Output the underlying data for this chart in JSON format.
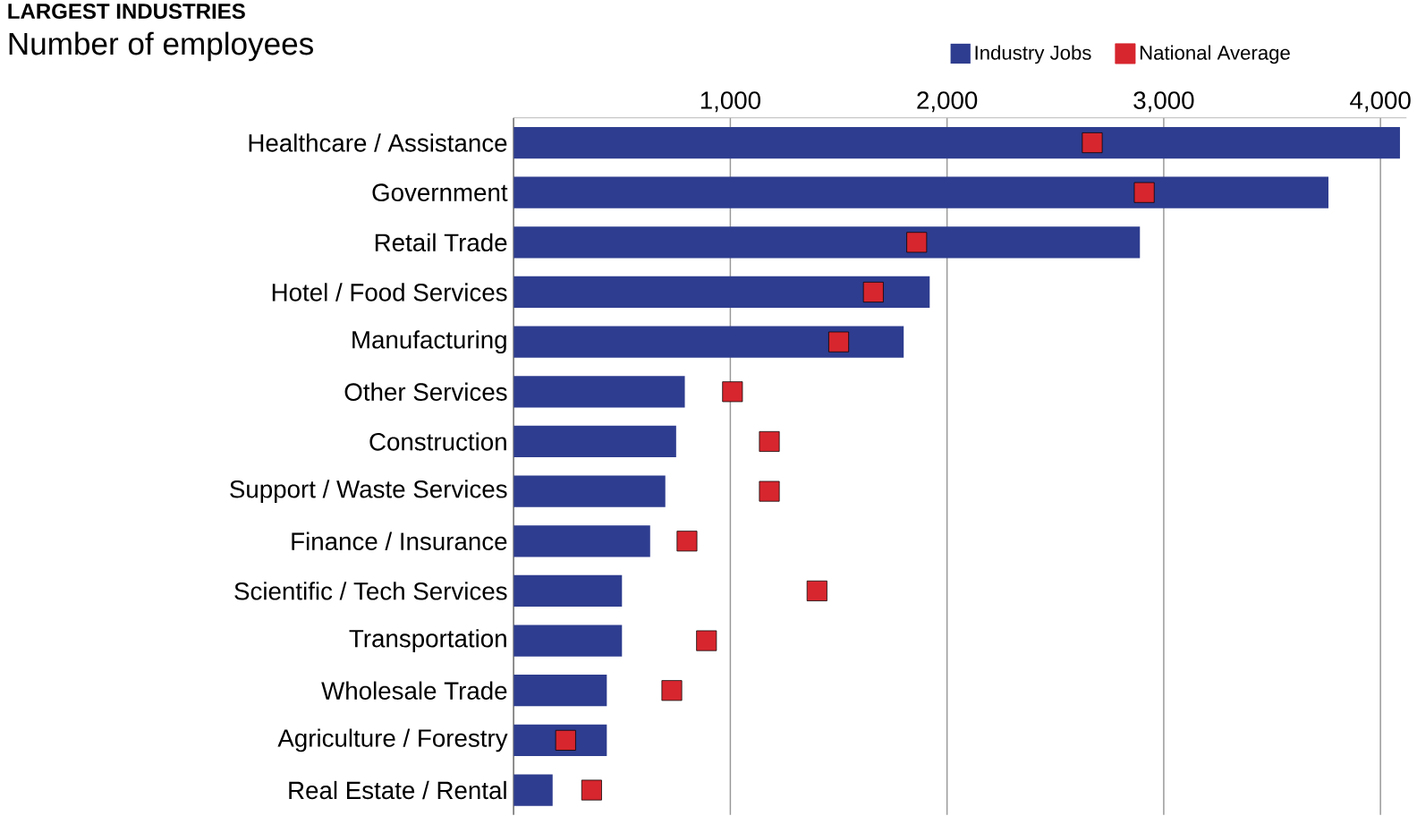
{
  "chart_data": {
    "type": "bar",
    "orientation": "horizontal",
    "title": "LARGEST INDUSTRIES",
    "subtitle": "Number of employees",
    "categories": [
      "Healthcare / Assistance",
      "Government",
      "Retail Trade",
      "Hotel / Food Services",
      "Manufacturing",
      "Other Services",
      "Construction",
      "Support / Waste Services",
      "Finance / Insurance",
      "Scientific / Tech Services",
      "Transportation",
      "Wholesale Trade",
      "Agriculture / Forestry",
      "Real Estate / Rental"
    ],
    "series": [
      {
        "name": "Industry Jobs",
        "color": "#2e3d8f",
        "values": [
          4090,
          3760,
          2890,
          1920,
          1800,
          790,
          750,
          700,
          630,
          500,
          500,
          430,
          430,
          180
        ]
      },
      {
        "name": "National Average",
        "type": "scatter",
        "marker": "square",
        "color": "#d7262e",
        "values": [
          2670,
          2910,
          1860,
          1660,
          1500,
          1010,
          1180,
          1180,
          800,
          1400,
          890,
          730,
          240,
          360
        ]
      }
    ],
    "xlim": [
      0,
      4120
    ],
    "xticks": [
      {
        "value": 1000,
        "label": "1,000"
      },
      {
        "value": 2000,
        "label": "2,000"
      },
      {
        "value": 3000,
        "label": "3,000"
      },
      {
        "value": 4000,
        "label": "4,000"
      }
    ],
    "grid": "x",
    "legend": "top"
  }
}
